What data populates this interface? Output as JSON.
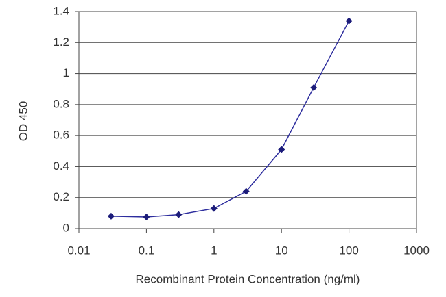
{
  "chart_data": {
    "type": "line",
    "xlabel": "Recombinant Protein Concentration (ng/ml)",
    "ylabel": "OD 450",
    "x": [
      0.03,
      0.1,
      0.3,
      1,
      3,
      10,
      30,
      100
    ],
    "series": [
      {
        "color": "#2e2e9e",
        "values": [
          0.08,
          0.075,
          0.09,
          0.13,
          0.24,
          0.51,
          0.91,
          1.34
        ]
      }
    ],
    "xscale": "log",
    "xlim": [
      0.01,
      1000
    ],
    "xticks": [
      0.01,
      0.1,
      1,
      10,
      100,
      1000
    ],
    "ylim": [
      0,
      1.4
    ],
    "yticks": [
      0,
      0.2,
      0.4,
      0.6,
      0.8,
      1,
      1.2,
      1.4
    ],
    "grid": true
  }
}
